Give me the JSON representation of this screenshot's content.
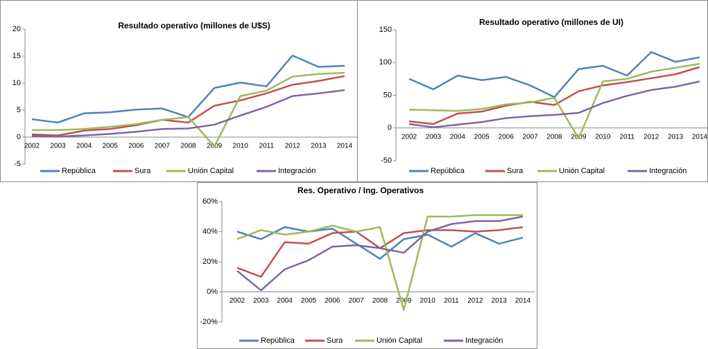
{
  "chart_data": [
    {
      "type": "line",
      "title": "Resultado operativo (millones de U$S)",
      "categories": [
        "2002",
        "2003",
        "2004",
        "2005",
        "2006",
        "2007",
        "2008",
        "2009",
        "2010",
        "2011",
        "2012",
        "2013",
        "2014"
      ],
      "ylim": [
        -5,
        20
      ],
      "yticks": [
        -5,
        0,
        5,
        10,
        15,
        20
      ],
      "series": [
        {
          "name": "República",
          "color": "#4f81bd",
          "values": [
            3.3,
            2.7,
            4.4,
            4.6,
            5.1,
            5.3,
            3.7,
            9.1,
            10.1,
            9.4,
            15.1,
            13.0,
            13.2
          ]
        },
        {
          "name": "Sura",
          "color": "#c0504d",
          "values": [
            0.5,
            0.3,
            1.2,
            1.5,
            2.2,
            3.2,
            2.7,
            5.8,
            6.8,
            8.1,
            9.7,
            10.4,
            11.3
          ]
        },
        {
          "name": "Unión Capital",
          "color": "#9bbb59",
          "values": [
            1.3,
            1.3,
            1.5,
            1.9,
            2.4,
            3.2,
            3.7,
            -1.7,
            7.6,
            8.6,
            11.2,
            11.7,
            11.9
          ]
        },
        {
          "name": "Integración",
          "color": "#8064a2",
          "values": [
            0.2,
            0.1,
            0.3,
            0.6,
            1.0,
            1.5,
            1.6,
            2.3,
            4.0,
            5.6,
            7.6,
            8.1,
            8.7
          ]
        }
      ]
    },
    {
      "type": "line",
      "title": "Resultado operativo (millones de UI)",
      "categories": [
        "2002",
        "2003",
        "2004",
        "2005",
        "2006",
        "2007",
        "2008",
        "2009",
        "2010",
        "2011",
        "2012",
        "2013",
        "2014"
      ],
      "ylim": [
        -50,
        150
      ],
      "yticks": [
        -50,
        0,
        50,
        100,
        150
      ],
      "series": [
        {
          "name": "República",
          "color": "#4f81bd",
          "values": [
            75,
            59,
            80,
            73,
            78,
            65,
            47,
            90,
            95,
            80,
            116,
            101,
            108
          ]
        },
        {
          "name": "Sura",
          "color": "#c0504d",
          "values": [
            10,
            6,
            22,
            25,
            34,
            40,
            35,
            56,
            65,
            70,
            76,
            82,
            93
          ]
        },
        {
          "name": "Unión Capital",
          "color": "#9bbb59",
          "values": [
            28,
            27,
            26,
            29,
            36,
            39,
            46,
            -16,
            71,
            75,
            86,
            92,
            98
          ]
        },
        {
          "name": "Integración",
          "color": "#8064a2",
          "values": [
            6,
            1,
            5,
            9,
            15,
            18,
            20,
            23,
            38,
            49,
            58,
            63,
            71
          ]
        }
      ]
    },
    {
      "type": "line",
      "title": "Res. Operativo / Ing. Operativos",
      "categories": [
        "2002",
        "2003",
        "2004",
        "2005",
        "2006",
        "2007",
        "2008",
        "2009",
        "2010",
        "2011",
        "2012",
        "2013",
        "2014"
      ],
      "ylim": [
        -20,
        60
      ],
      "yticks": [
        {
          "value": -20,
          "label": "-20%"
        },
        {
          "value": 0,
          "label": "0%"
        },
        {
          "value": 20,
          "label": "20%"
        },
        {
          "value": 40,
          "label": "40%"
        },
        {
          "value": 60,
          "label": "60%"
        }
      ],
      "series": [
        {
          "name": "República",
          "color": "#4f81bd",
          "values": [
            40,
            35,
            43,
            40,
            42,
            32,
            22,
            35,
            38,
            30,
            39,
            32,
            36
          ]
        },
        {
          "name": "Sura",
          "color": "#c0504d",
          "values": [
            16,
            10,
            33,
            32,
            39,
            40,
            29,
            39,
            41,
            41,
            40,
            41,
            43
          ]
        },
        {
          "name": "Unión Capital",
          "color": "#9bbb59",
          "values": [
            35,
            41,
            38,
            40,
            44,
            40,
            43,
            -12,
            50,
            50,
            51,
            51,
            51
          ]
        },
        {
          "name": "Integración",
          "color": "#8064a2",
          "values": [
            14,
            1,
            15,
            21,
            30,
            31,
            29,
            26,
            40,
            45,
            47,
            47,
            50
          ]
        }
      ]
    }
  ]
}
